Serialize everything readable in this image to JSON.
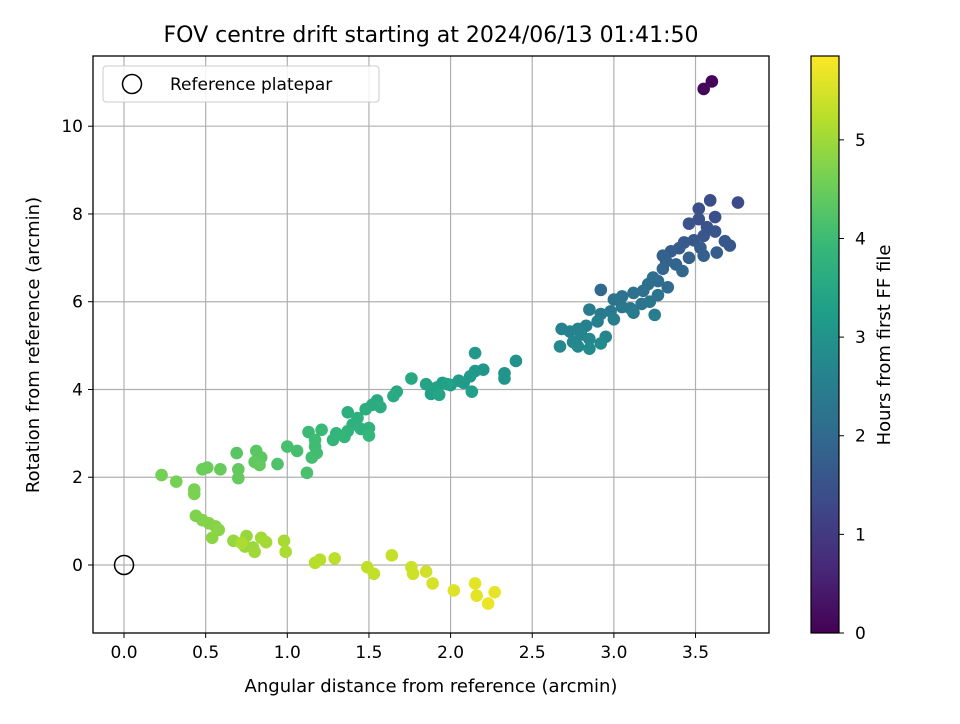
{
  "chart_data": {
    "type": "scatter",
    "title": "FOV centre drift starting at 2024/06/13 01:41:50",
    "xlabel": "Angular distance from reference (arcmin)",
    "ylabel": "Rotation from reference (arcmin)",
    "xlim": [
      -0.19,
      3.95
    ],
    "ylim": [
      -1.55,
      11.6
    ],
    "xticks": [
      0.0,
      0.5,
      1.0,
      1.5,
      2.0,
      2.5,
      3.0,
      3.5
    ],
    "xtick_labels": [
      "0.0",
      "0.5",
      "1.0",
      "1.5",
      "2.0",
      "2.5",
      "3.0",
      "3.5"
    ],
    "yticks": [
      0,
      2,
      4,
      6,
      8,
      10
    ],
    "ytick_labels": [
      "0",
      "2",
      "4",
      "6",
      "8",
      "10"
    ],
    "grid": true,
    "legend": {
      "placement": "top-left",
      "entries": [
        "Reference platepar"
      ]
    },
    "reference_point": {
      "x": 0.0,
      "y": 0.0
    },
    "colorbar": {
      "label": "Hours from first FF file",
      "range": [
        0,
        5.85
      ],
      "ticks": [
        0,
        1,
        2,
        3,
        4,
        5
      ],
      "tick_labels": [
        "0",
        "1",
        "2",
        "3",
        "4",
        "5"
      ],
      "colormap": "viridis",
      "colors": [
        "#440154",
        "#482878",
        "#3e4989",
        "#31688e",
        "#26828e",
        "#1f9e89",
        "#35b779",
        "#6ece58",
        "#b5de2b",
        "#fde725"
      ]
    },
    "series": [
      {
        "points": [
          [
            3.6,
            11.02,
            0.05
          ],
          [
            3.55,
            10.85,
            0.1
          ],
          [
            3.76,
            8.26,
            1.35
          ],
          [
            3.59,
            8.31,
            1.4
          ],
          [
            3.52,
            8.12,
            1.42
          ],
          [
            3.62,
            7.93,
            1.45
          ],
          [
            3.52,
            7.88,
            1.47
          ],
          [
            3.46,
            7.78,
            1.5
          ],
          [
            3.57,
            7.7,
            1.52
          ],
          [
            3.62,
            7.6,
            1.55
          ],
          [
            3.55,
            7.5,
            1.57
          ],
          [
            3.68,
            7.38,
            1.6
          ],
          [
            3.71,
            7.28,
            1.6
          ],
          [
            3.49,
            7.4,
            1.62
          ],
          [
            3.43,
            7.35,
            1.65
          ],
          [
            3.4,
            7.22,
            1.67
          ],
          [
            3.53,
            7.23,
            1.7
          ],
          [
            3.63,
            7.12,
            1.72
          ],
          [
            3.35,
            7.15,
            1.75
          ],
          [
            3.55,
            7.05,
            1.77
          ],
          [
            3.3,
            7.05,
            1.8
          ],
          [
            3.46,
            7.0,
            1.82
          ],
          [
            3.32,
            6.92,
            1.85
          ],
          [
            3.38,
            6.85,
            1.87
          ],
          [
            3.3,
            6.75,
            1.9
          ],
          [
            3.42,
            6.7,
            1.92
          ],
          [
            2.92,
            6.27,
            2.0
          ],
          [
            3.33,
            6.33,
            2.05
          ],
          [
            3.27,
            6.47,
            2.08
          ],
          [
            3.24,
            6.55,
            2.1
          ],
          [
            3.21,
            6.4,
            2.12
          ],
          [
            3.18,
            6.25,
            2.15
          ],
          [
            3.12,
            6.2,
            2.17
          ],
          [
            3.05,
            6.12,
            2.2
          ],
          [
            3.0,
            6.05,
            2.22
          ],
          [
            3.27,
            6.15,
            2.25
          ],
          [
            3.22,
            6.0,
            2.27
          ],
          [
            3.17,
            5.95,
            2.3
          ],
          [
            3.1,
            5.85,
            2.32
          ],
          [
            3.05,
            5.88,
            2.35
          ],
          [
            2.98,
            5.78,
            2.37
          ],
          [
            2.92,
            5.72,
            2.4
          ],
          [
            2.85,
            5.82,
            2.42
          ],
          [
            3.12,
            5.75,
            2.45
          ],
          [
            3.25,
            5.7,
            2.47
          ],
          [
            3.0,
            5.6,
            2.5
          ],
          [
            2.9,
            5.55,
            2.52
          ],
          [
            2.83,
            5.45,
            2.55
          ],
          [
            2.78,
            5.38,
            2.57
          ],
          [
            2.73,
            5.32,
            2.6
          ],
          [
            2.68,
            5.38,
            2.62
          ],
          [
            2.8,
            5.25,
            2.65
          ],
          [
            2.95,
            5.2,
            2.67
          ],
          [
            2.85,
            5.15,
            2.7
          ],
          [
            2.75,
            5.08,
            2.72
          ],
          [
            2.67,
            4.98,
            2.75
          ],
          [
            2.78,
            4.98,
            2.77
          ],
          [
            2.85,
            4.93,
            2.8
          ],
          [
            2.92,
            5.05,
            2.82
          ],
          [
            2.4,
            4.65,
            3.0
          ],
          [
            2.33,
            4.37,
            3.02
          ],
          [
            2.33,
            4.25,
            3.05
          ],
          [
            2.2,
            4.45,
            3.07
          ],
          [
            2.15,
            4.83,
            3.1
          ],
          [
            2.15,
            4.42,
            3.12
          ],
          [
            2.12,
            4.3,
            3.15
          ],
          [
            2.08,
            4.15,
            3.17
          ],
          [
            2.05,
            4.2,
            3.2
          ],
          [
            2.0,
            4.1,
            3.22
          ],
          [
            1.95,
            4.15,
            3.25
          ],
          [
            1.92,
            4.05,
            3.27
          ],
          [
            1.88,
            3.9,
            3.3
          ],
          [
            2.13,
            3.95,
            3.32
          ],
          [
            1.98,
            4.12,
            3.35
          ],
          [
            1.9,
            4.02,
            3.37
          ],
          [
            1.85,
            4.12,
            3.4
          ],
          [
            1.93,
            3.88,
            3.42
          ],
          [
            1.76,
            4.25,
            3.5
          ],
          [
            1.67,
            3.95,
            3.52
          ],
          [
            1.65,
            3.85,
            3.55
          ],
          [
            1.55,
            3.75,
            3.57
          ],
          [
            1.52,
            3.65,
            3.6
          ],
          [
            1.57,
            3.6,
            3.62
          ],
          [
            1.48,
            3.55,
            3.65
          ],
          [
            1.37,
            3.48,
            3.67
          ],
          [
            1.43,
            3.35,
            3.7
          ],
          [
            1.4,
            3.2,
            3.72
          ],
          [
            1.45,
            3.1,
            3.75
          ],
          [
            1.5,
            3.12,
            3.77
          ],
          [
            1.37,
            3.05,
            3.8
          ],
          [
            1.3,
            3.0,
            3.82
          ],
          [
            1.35,
            2.92,
            3.85
          ],
          [
            1.28,
            2.85,
            3.87
          ],
          [
            1.5,
            2.95,
            3.9
          ],
          [
            1.21,
            3.08,
            3.95
          ],
          [
            1.13,
            3.03,
            3.97
          ],
          [
            1.17,
            2.85,
            4.0
          ],
          [
            1.17,
            2.7,
            4.02
          ],
          [
            1.18,
            2.55,
            4.05
          ],
          [
            1.15,
            2.45,
            4.07
          ],
          [
            1.06,
            2.6,
            4.1
          ],
          [
            1.0,
            2.7,
            4.12
          ],
          [
            1.12,
            2.1,
            4.15
          ],
          [
            0.94,
            2.3,
            4.17
          ],
          [
            0.69,
            2.55,
            4.3
          ],
          [
            0.81,
            2.6,
            4.32
          ],
          [
            0.84,
            2.45,
            4.35
          ],
          [
            0.8,
            2.35,
            4.37
          ],
          [
            0.83,
            2.28,
            4.4
          ],
          [
            0.7,
            2.18,
            4.42
          ],
          [
            0.7,
            1.98,
            4.45
          ],
          [
            0.59,
            2.18,
            4.47
          ],
          [
            0.51,
            2.22,
            4.5
          ],
          [
            0.48,
            2.18,
            4.52
          ],
          [
            0.23,
            2.05,
            4.6
          ],
          [
            0.32,
            1.9,
            4.62
          ],
          [
            0.43,
            1.72,
            4.65
          ],
          [
            0.43,
            1.62,
            4.67
          ],
          [
            0.44,
            1.12,
            4.7
          ],
          [
            0.48,
            1.02,
            4.72
          ],
          [
            0.52,
            0.95,
            4.75
          ],
          [
            0.56,
            0.88,
            4.77
          ],
          [
            0.58,
            0.8,
            4.8
          ],
          [
            0.54,
            0.62,
            4.82
          ],
          [
            0.67,
            0.55,
            4.9
          ],
          [
            0.75,
            0.66,
            4.92
          ],
          [
            0.74,
            0.42,
            4.95
          ],
          [
            0.79,
            0.4,
            4.97
          ],
          [
            0.8,
            0.3,
            5.0
          ],
          [
            0.84,
            0.62,
            5.02
          ],
          [
            0.87,
            0.52,
            5.05
          ],
          [
            0.98,
            0.55,
            5.07
          ],
          [
            0.99,
            0.3,
            5.1
          ],
          [
            0.72,
            0.5,
            5.12
          ],
          [
            1.17,
            0.05,
            5.2
          ],
          [
            1.2,
            0.12,
            5.22
          ],
          [
            1.29,
            0.15,
            5.25
          ],
          [
            1.49,
            -0.05,
            5.3
          ],
          [
            1.53,
            -0.2,
            5.32
          ],
          [
            1.64,
            0.22,
            5.35
          ],
          [
            1.76,
            -0.05,
            5.4
          ],
          [
            1.77,
            -0.2,
            5.42
          ],
          [
            1.85,
            -0.15,
            5.45
          ],
          [
            1.89,
            -0.42,
            5.5
          ],
          [
            2.02,
            -0.58,
            5.55
          ],
          [
            2.15,
            -0.42,
            5.6
          ],
          [
            2.16,
            -0.7,
            5.62
          ],
          [
            2.27,
            -0.62,
            5.65
          ],
          [
            2.23,
            -0.88,
            5.7
          ]
        ]
      }
    ]
  }
}
